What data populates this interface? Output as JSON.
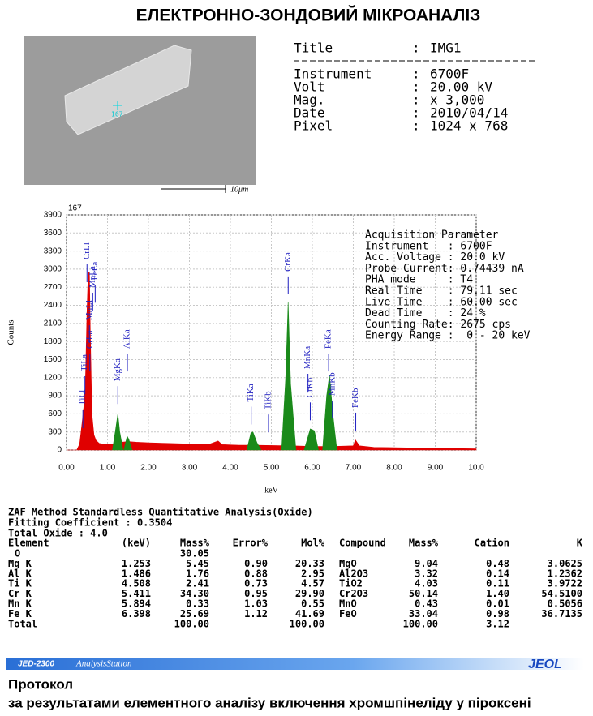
{
  "header": {
    "title": "ЕЛЕКТРОННО-ЗОНДОВИЙ МІКРОАНАЛІЗ"
  },
  "image": {
    "point_label": "167",
    "scale_label": "10μm"
  },
  "info": [
    {
      "label": "Title",
      "sep": ":",
      "value": "IMG1"
    },
    {
      "label": "Instrument",
      "sep": ":",
      "value": "6700F"
    },
    {
      "label": "Volt",
      "sep": ":",
      "value": "20.00 kV"
    },
    {
      "label": "Mag.",
      "sep": ":",
      "value": "x 3,000"
    },
    {
      "label": "Date",
      "sep": ":",
      "value": "2010/04/14"
    },
    {
      "label": "Pixel",
      "sep": ":",
      "value": "1024 x 768"
    }
  ],
  "chart_data": {
    "type": "area",
    "corner_label": "167",
    "x_label": "keV",
    "y_label": "Counts",
    "color": "#e00000",
    "x": [
      0,
      0.25,
      0.32,
      0.38,
      0.42,
      0.46,
      0.5,
      0.53,
      0.56,
      0.58,
      0.62,
      0.67,
      0.72,
      0.8,
      1.0,
      1.15,
      1.25,
      1.35,
      1.5,
      1.7,
      2.0,
      2.5,
      3.0,
      3.5,
      3.7,
      3.8,
      4.2,
      4.4,
      4.6,
      5.0,
      5.5,
      6.0,
      6.5,
      7.0,
      7.05,
      7.15,
      7.5,
      8.0,
      9.0,
      10.0
    ],
    "values": [
      0,
      0,
      100,
      450,
      700,
      1100,
      2300,
      2950,
      2950,
      2000,
      600,
      250,
      160,
      110,
      90,
      100,
      130,
      130,
      140,
      130,
      120,
      110,
      100,
      100,
      150,
      90,
      80,
      80,
      80,
      75,
      70,
      60,
      60,
      70,
      170,
      70,
      45,
      40,
      30,
      20
    ],
    "peak_regions": [
      {
        "color": "#1a8a1a",
        "x": [
          1.12,
          1.2,
          1.253,
          1.3,
          1.38
        ],
        "values": [
          0,
          350,
          600,
          300,
          0
        ]
      },
      {
        "color": "#1a8a1a",
        "x": [
          1.4,
          1.48,
          1.52,
          1.6
        ],
        "values": [
          0,
          230,
          180,
          0
        ]
      },
      {
        "color": "#1a8a1a",
        "x": [
          4.4,
          4.5,
          4.55,
          4.65,
          4.75
        ],
        "values": [
          0,
          280,
          300,
          120,
          0
        ]
      },
      {
        "color": "#1a8a1a",
        "x": [
          5.25,
          5.35,
          5.41,
          5.47,
          5.6
        ],
        "values": [
          0,
          1200,
          2450,
          1100,
          0
        ]
      },
      {
        "color": "#1a8a1a",
        "x": [
          5.8,
          5.95,
          6.05,
          6.15
        ],
        "values": [
          0,
          350,
          320,
          0
        ]
      },
      {
        "color": "#1a8a1a",
        "x": [
          6.25,
          6.35,
          6.42,
          6.5,
          6.6
        ],
        "values": [
          0,
          900,
          1250,
          600,
          0
        ]
      }
    ],
    "markers": [
      {
        "label": "TiLl",
        "x": 0.4,
        "y": 740
      },
      {
        "label": "TiLa",
        "x": 0.45,
        "y": 1305
      },
      {
        "label": "CrLa",
        "x": 0.57,
        "y": 1680
      },
      {
        "label": "MnLl",
        "x": 0.56,
        "y": 2150
      },
      {
        "label": "CrLl",
        "x": 0.5,
        "y": 3160
      },
      {
        "label": "FeLa",
        "x": 0.7,
        "y": 2820
      },
      {
        "label": "MnLa",
        "x": 0.64,
        "y": 2690
      },
      {
        "label": "MgKa",
        "x": 1.253,
        "y": 1140
      },
      {
        "label": "AlKa",
        "x": 1.486,
        "y": 1680
      },
      {
        "label": "TiKa",
        "x": 4.508,
        "y": 800
      },
      {
        "label": "TiKb",
        "x": 4.93,
        "y": 670
      },
      {
        "label": "CrKa",
        "x": 5.411,
        "y": 2960
      },
      {
        "label": "CrKb",
        "x": 5.95,
        "y": 870
      },
      {
        "label": "MnKa",
        "x": 5.894,
        "y": 1345
      },
      {
        "label": "FeKa",
        "x": 6.398,
        "y": 1680
      },
      {
        "label": "MnKb",
        "x": 6.49,
        "y": 900
      },
      {
        "label": "FeKb",
        "x": 7.06,
        "y": 700
      }
    ],
    "xlim": [
      0,
      10
    ],
    "xticks": [
      {
        "value": 0,
        "label": "0.00"
      },
      {
        "value": 1,
        "label": "1.00"
      },
      {
        "value": 2,
        "label": "2.00"
      },
      {
        "value": 3,
        "label": "3.00"
      },
      {
        "value": 4,
        "label": "4.00"
      },
      {
        "value": 5,
        "label": "5.00"
      },
      {
        "value": 6,
        "label": "6.00"
      },
      {
        "value": 7,
        "label": "7.00"
      },
      {
        "value": 8,
        "label": "8.00"
      },
      {
        "value": 9,
        "label": "9.00"
      },
      {
        "value": 10,
        "label": "10.0"
      }
    ],
    "ylim": [
      0,
      3900
    ],
    "yticks": [
      0,
      300,
      600,
      900,
      1200,
      1500,
      1800,
      2100,
      2400,
      2700,
      3000,
      3300,
      3600,
      3900
    ],
    "grid": true,
    "acquisition": [
      "Acquisition Parameter",
      "Instrument   : 6700F",
      "Acc. Voltage : 20.0 kV",
      "Probe Current: 0.74439 nA",
      "PHA mode     : T4",
      "Real Time    : 79.11 sec",
      "Live Time    : 60.00 sec",
      "Dead Time    : 24 %",
      "Counting Rate: 2675 cps",
      "Energy Range :  0 - 20 keV"
    ]
  },
  "zaf": {
    "title": "ZAF Method Standardless Quantitative Analysis(Oxide)",
    "fitting": "Fitting Coefficient : 0.3504",
    "total_oxide": "Total Oxide : 4.0",
    "header": [
      "Element",
      "(keV)",
      "Mass%",
      "Error%",
      "Mol%",
      "Compound",
      "Mass%",
      "Cation",
      "K"
    ],
    "rows": [
      [
        "O",
        null,
        "30.05",
        null,
        null,
        null,
        null,
        null,
        null
      ],
      [
        "Mg K",
        "1.253",
        "5.45",
        "0.90",
        "20.33",
        "MgO",
        "9.04",
        "0.48",
        "3.0625"
      ],
      [
        "Al K",
        "1.486",
        "1.76",
        "0.88",
        "2.95",
        "Al2O3",
        "3.32",
        "0.14",
        "1.2362"
      ],
      [
        "Ti K",
        "4.508",
        "2.41",
        "0.73",
        "4.57",
        "TiO2",
        "4.03",
        "0.11",
        "3.9722"
      ],
      [
        "Cr K",
        "5.411",
        "34.30",
        "0.95",
        "29.90",
        "Cr2O3",
        "50.14",
        "1.40",
        "54.5100"
      ],
      [
        "Mn K",
        "5.894",
        "0.33",
        "1.03",
        "0.55",
        "MnO",
        "0.43",
        "0.01",
        "0.5056"
      ],
      [
        "Fe K",
        "6.398",
        "25.69",
        "1.12",
        "41.69",
        "FeO",
        "33.04",
        "0.98",
        "36.7135"
      ],
      [
        "Total",
        null,
        "100.00",
        null,
        "100.00",
        null,
        "100.00",
        "3.12",
        null
      ]
    ]
  },
  "footer": {
    "product": "JED-2300",
    "station": "AnalysisStation",
    "brand": "JEOL",
    "heading": "Протокол",
    "caption": "за результатами елементного аналізу включення хромшпінеліду у піроксені"
  }
}
